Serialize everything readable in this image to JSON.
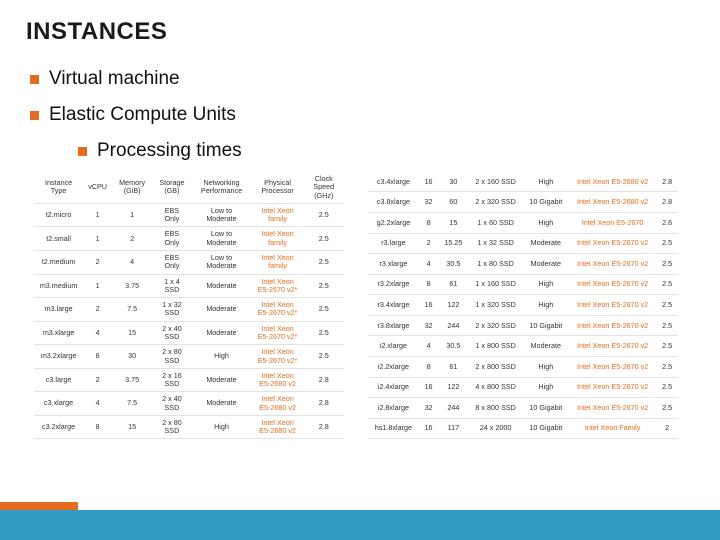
{
  "title": "INSTANCES",
  "bullets": {
    "b1a": "Virtual machine",
    "b1b": "Elastic Compute Units",
    "b2a": "Processing times"
  },
  "colors": {
    "accent": "#e36c1f",
    "footer": "#2f9bbf",
    "text": "#1a1a1a",
    "border": "#e3e3e3"
  },
  "leftTable": {
    "headers": [
      "Instance Type",
      "vCPU",
      "Memory (GiB)",
      "Storage (GB)",
      "Networking Performance",
      "Physical Processor",
      "Clock Speed (GHz)"
    ],
    "rows": [
      [
        "t2.micro",
        "1",
        "1",
        "EBS Only",
        "Low to Moderate",
        "Intel Xeon family",
        "2.5"
      ],
      [
        "t2.small",
        "1",
        "2",
        "EBS Only",
        "Low to Moderate",
        "Intel Xeon family",
        "2.5"
      ],
      [
        "t2.medium",
        "2",
        "4",
        "EBS Only",
        "Low to Moderate",
        "Intel Xeon family",
        "2.5"
      ],
      [
        "m3.medium",
        "1",
        "3.75",
        "1 x 4 SSD",
        "Moderate",
        "Intel Xeon E5-2670 v2*",
        "2.5"
      ],
      [
        "m3.large",
        "2",
        "7.5",
        "1 x 32 SSD",
        "Moderate",
        "Intel Xeon E5-2670 v2*",
        "2.5"
      ],
      [
        "m3.xlarge",
        "4",
        "15",
        "2 x 40 SSD",
        "Moderate",
        "Intel Xeon E5-2670 v2*",
        "2.5"
      ],
      [
        "m3.2xlarge",
        "8",
        "30",
        "2 x 80 SSD",
        "High",
        "Intel Xeon E5-2670 v2*",
        "2.5"
      ],
      [
        "c3.large",
        "2",
        "3.75",
        "2 x 16 SSD",
        "Moderate",
        "Intel Xeon E5-2680 v2",
        "2.8"
      ],
      [
        "c3.xlarge",
        "4",
        "7.5",
        "2 x 40 SSD",
        "Moderate",
        "Intel Xeon E5-2680 v2",
        "2.8"
      ],
      [
        "c3.2xlarge",
        "8",
        "15",
        "2 x 80 SSD",
        "High",
        "Intel Xeon E5-2680 v2",
        "2.8"
      ]
    ]
  },
  "rightTable": {
    "rows": [
      [
        "c3.4xlarge",
        "16",
        "30",
        "2 x 160 SSD",
        "High",
        "Intel Xeon E5-2680 v2",
        "2.8"
      ],
      [
        "c3.8xlarge",
        "32",
        "60",
        "2 x 320 SSD",
        "10 Gigabit",
        "Intel Xeon E5-2680 v2",
        "2.8"
      ],
      [
        "g2.2xlarge",
        "8",
        "15",
        "1 x 60 SSD",
        "High",
        "Intel Xeon E5-2670",
        "2.6"
      ],
      [
        "r3.large",
        "2",
        "15.25",
        "1 x 32 SSD",
        "Moderate",
        "Intel Xeon E5-2670 v2",
        "2.5"
      ],
      [
        "r3.xlarge",
        "4",
        "30.5",
        "1 x 80 SSD",
        "Moderate",
        "Intel Xeon E5-2670 v2",
        "2.5"
      ],
      [
        "r3.2xlarge",
        "8",
        "61",
        "1 x 160 SSD",
        "High",
        "Intel Xeon E5-2670 v2",
        "2.5"
      ],
      [
        "r3.4xlarge",
        "16",
        "122",
        "1 x 320 SSD",
        "High",
        "Intel Xeon E5-2670 v2",
        "2.5"
      ],
      [
        "r3.8xlarge",
        "32",
        "244",
        "2 x 320 SSD",
        "10 Gigabit",
        "Intel Xeon E5-2670 v2",
        "2.5"
      ],
      [
        "i2.xlarge",
        "4",
        "30.5",
        "1 x 800 SSD",
        "Moderate",
        "Intel Xeon E5-2670 v2",
        "2.5"
      ],
      [
        "i2.2xlarge",
        "8",
        "61",
        "2 x 800 SSD",
        "High",
        "Intel Xeon E5-2670 v2",
        "2.5"
      ],
      [
        "i2.4xlarge",
        "16",
        "122",
        "4 x 800 SSD",
        "High",
        "Intel Xeon E5-2670 v2",
        "2.5"
      ],
      [
        "i2.8xlarge",
        "32",
        "244",
        "8 x 800 SSD",
        "10 Gigabit",
        "Intel Xeon E5-2670 v2",
        "2.5"
      ],
      [
        "hs1.8xlarge",
        "16",
        "117",
        "24 x 2000",
        "10 Gigabit",
        "Intel Xeon Family",
        "2"
      ]
    ]
  }
}
